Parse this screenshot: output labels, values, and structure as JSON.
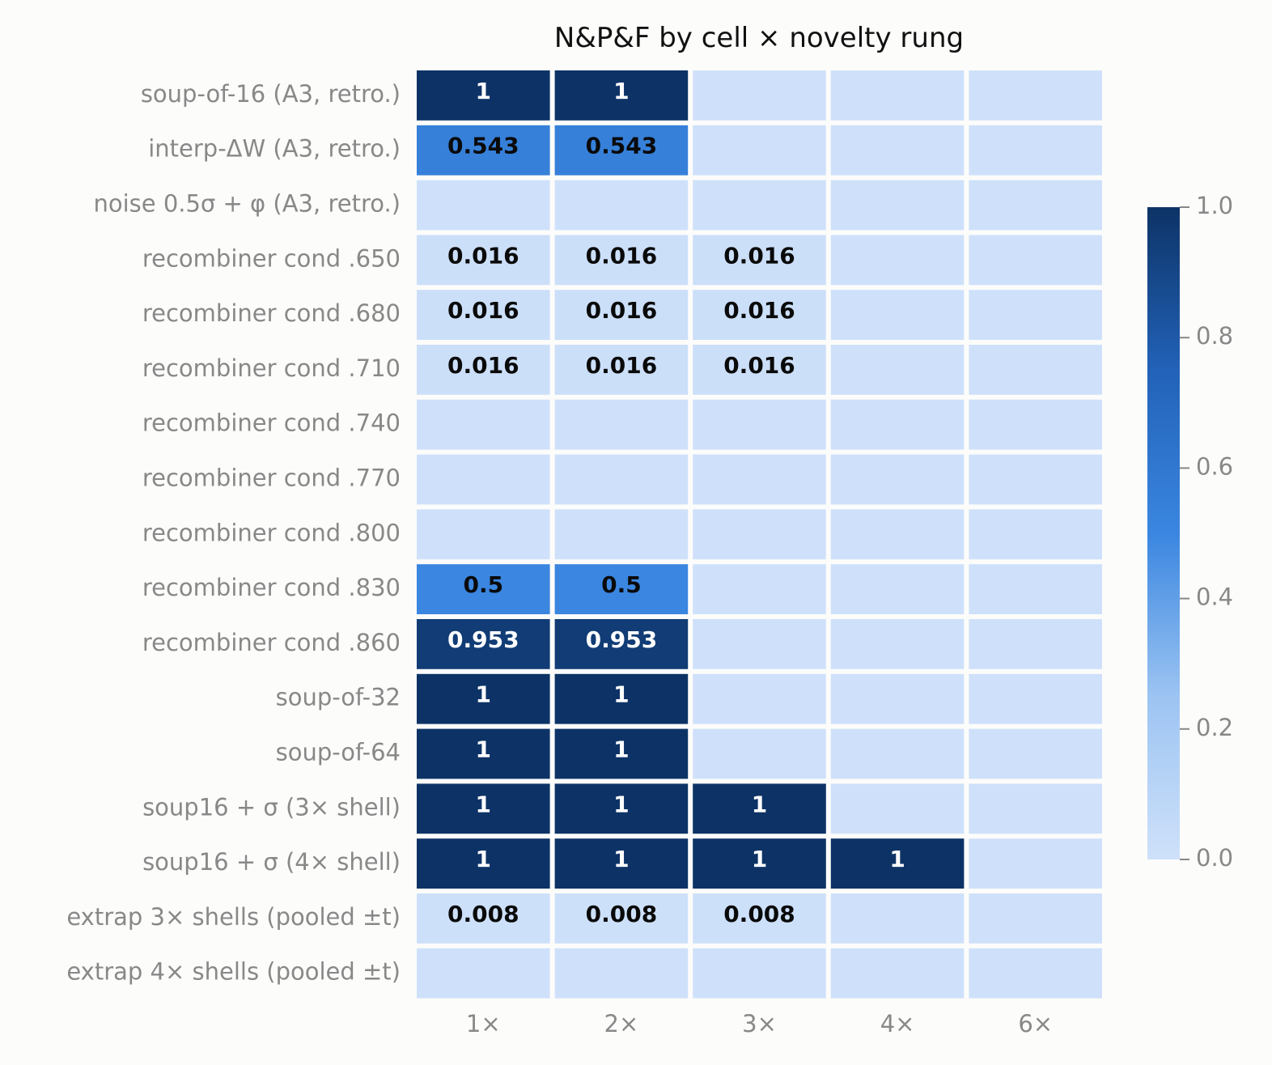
{
  "chart_data": {
    "type": "heatmap",
    "title": "N&P&F by cell × novelty rung",
    "rows": [
      "soup-of-16 (A3, retro.)",
      "interp-ΔW (A3, retro.)",
      "noise 0.5σ + φ (A3, retro.)",
      "recombiner cond .650",
      "recombiner cond .680",
      "recombiner cond .710",
      "recombiner cond .740",
      "recombiner cond .770",
      "recombiner cond .800",
      "recombiner cond .830",
      "recombiner cond .860",
      "soup-of-32",
      "soup-of-64",
      "soup16 + σ (3× shell)",
      "soup16 + σ (4× shell)",
      "extrap 3× shells (pooled ±t)",
      "extrap 4× shells (pooled ±t)"
    ],
    "columns": [
      "1×",
      "2×",
      "3×",
      "4×",
      "6×"
    ],
    "values": [
      [
        1,
        1,
        0,
        0,
        0
      ],
      [
        0.543,
        0.543,
        0,
        0,
        0
      ],
      [
        0,
        0,
        0,
        0,
        0
      ],
      [
        0.016,
        0.016,
        0.016,
        0,
        0
      ],
      [
        0.016,
        0.016,
        0.016,
        0,
        0
      ],
      [
        0.016,
        0.016,
        0.016,
        0,
        0
      ],
      [
        0,
        0,
        0,
        0,
        0
      ],
      [
        0,
        0,
        0,
        0,
        0
      ],
      [
        0,
        0,
        0,
        0,
        0
      ],
      [
        0.5,
        0.5,
        0,
        0,
        0
      ],
      [
        0.953,
        0.953,
        0,
        0,
        0
      ],
      [
        1,
        1,
        0,
        0,
        0
      ],
      [
        1,
        1,
        0,
        0,
        0
      ],
      [
        1,
        1,
        1,
        0,
        0
      ],
      [
        1,
        1,
        1,
        1,
        0
      ],
      [
        0.008,
        0.008,
        0.008,
        0,
        0
      ],
      [
        0,
        0,
        0,
        0,
        0
      ]
    ],
    "cell_labels": [
      [
        "1",
        "1",
        "",
        "",
        ""
      ],
      [
        "0.543",
        "0.543",
        "",
        "",
        ""
      ],
      [
        "",
        "",
        "",
        "",
        ""
      ],
      [
        "0.016",
        "0.016",
        "0.016",
        "",
        ""
      ],
      [
        "0.016",
        "0.016",
        "0.016",
        "",
        ""
      ],
      [
        "0.016",
        "0.016",
        "0.016",
        "",
        ""
      ],
      [
        "",
        "",
        "",
        "",
        ""
      ],
      [
        "",
        "",
        "",
        "",
        ""
      ],
      [
        "",
        "",
        "",
        "",
        ""
      ],
      [
        "0.5",
        "0.5",
        "",
        "",
        ""
      ],
      [
        "0.953",
        "0.953",
        "",
        "",
        ""
      ],
      [
        "1",
        "1",
        "",
        "",
        ""
      ],
      [
        "1",
        "1",
        "",
        "",
        ""
      ],
      [
        "1",
        "1",
        "1",
        "",
        ""
      ],
      [
        "1",
        "1",
        "1",
        "1",
        ""
      ],
      [
        "0.008",
        "0.008",
        "0.008",
        "",
        ""
      ],
      [
        "",
        "",
        "",
        "",
        ""
      ]
    ],
    "colorbar": {
      "range": [
        0.0,
        1.0
      ],
      "ticks": [
        "0.0",
        "0.2",
        "0.4",
        "0.6",
        "0.8",
        "1.0"
      ]
    },
    "colormap": [
      "#cfe1fa",
      "#9cc4f2",
      "#3a86e0",
      "#2262b8",
      "#0d3366"
    ]
  }
}
